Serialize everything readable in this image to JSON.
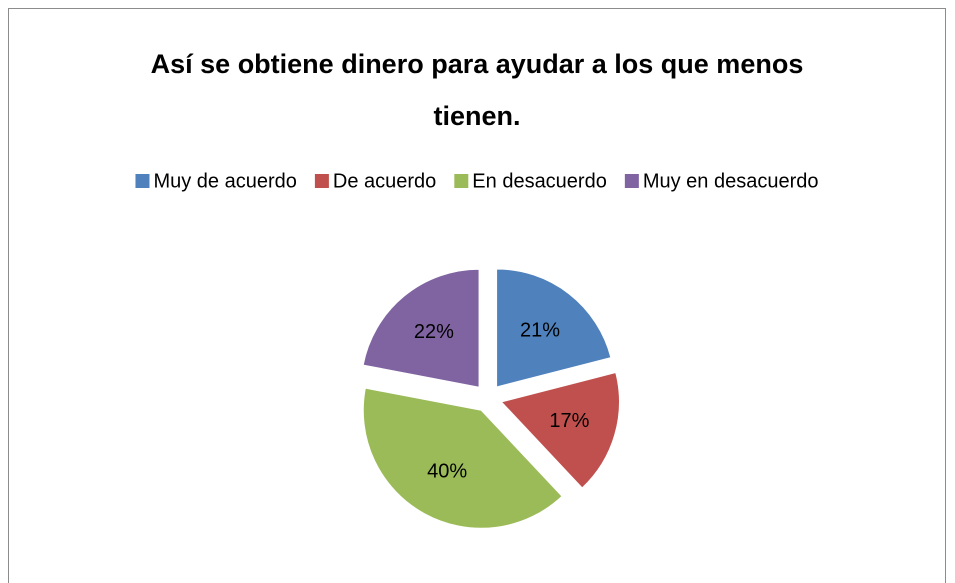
{
  "chart_data": {
    "type": "pie",
    "title": "Así se obtiene dinero para ayudar a los que menos tienen.",
    "categories": [
      "Muy de acuerdo",
      "De acuerdo",
      "En desacuerdo",
      "Muy en desacuerdo"
    ],
    "values": [
      21,
      17,
      40,
      22
    ],
    "value_labels": [
      "21%",
      "17%",
      "40%",
      "22%"
    ],
    "colors": [
      "#4f81bd",
      "#c0504d",
      "#9bbb59",
      "#8064a2"
    ],
    "legend": "top"
  }
}
